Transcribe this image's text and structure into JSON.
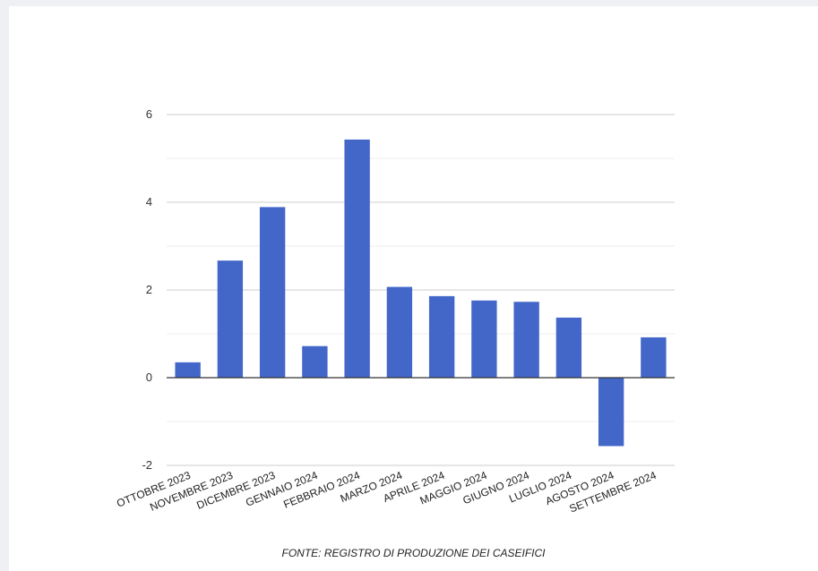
{
  "chart_data": {
    "type": "bar",
    "categories": [
      "OTTOBRE 2023",
      "NOVEMBRE 2023",
      "DICEMBRE 2023",
      "GENNAIO 2024",
      "FEBBRAIO 2024",
      "MARZO 2024",
      "APRILE 2024",
      "MAGGIO 2024",
      "GIUGNO 2024",
      "LUGLIO 2024",
      "AGOSTO 2024",
      "SETTEMBRE 2024"
    ],
    "values": [
      0.35,
      2.67,
      3.89,
      0.72,
      5.43,
      2.07,
      1.86,
      1.76,
      1.73,
      1.37,
      -1.56,
      0.92
    ],
    "ylim": [
      -2,
      6
    ],
    "yticks": [
      -2,
      0,
      2,
      4,
      6
    ],
    "ytick_labels": [
      "-2",
      "0",
      "2",
      "4",
      "6"
    ],
    "grid": true,
    "minor_grid": true,
    "bar_color": "#4267c8",
    "source": "FONTE: REGISTRO DI PRODUZIONE DEI CASEIFICI"
  }
}
